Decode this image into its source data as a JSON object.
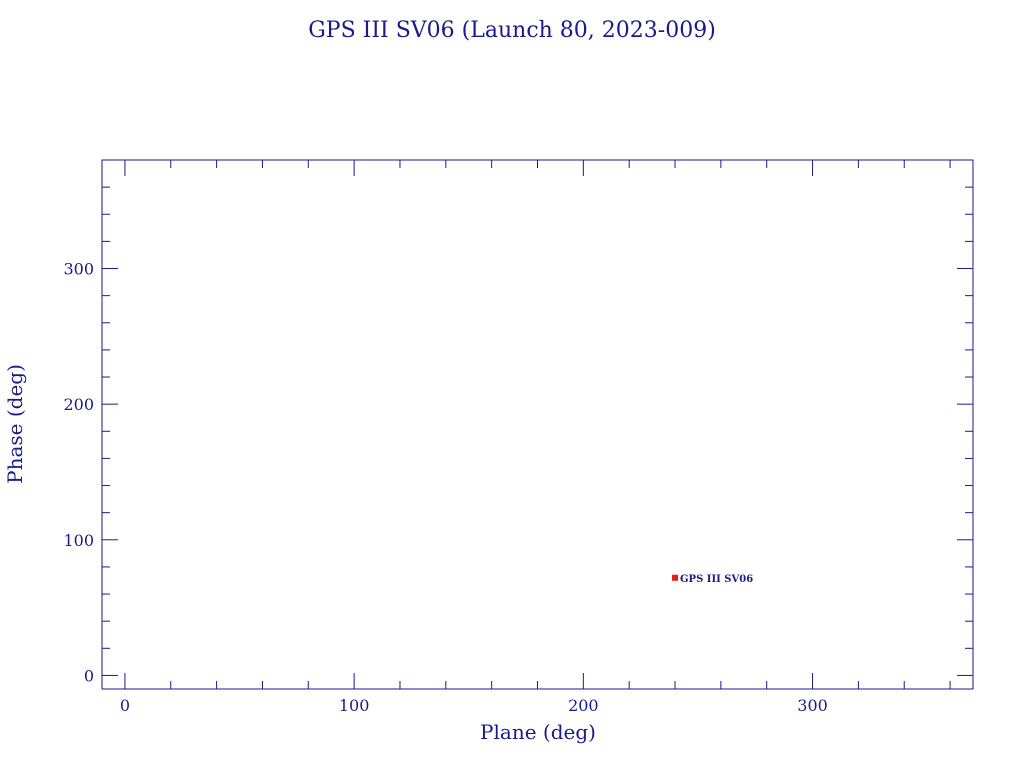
{
  "chart_data": {
    "type": "scatter",
    "title": "GPS III SV06 (Launch 80, 2023-009)",
    "xlabel": "Plane (deg)",
    "ylabel": "Phase (deg)",
    "xlim": [
      -10,
      370
    ],
    "ylim": [
      -10,
      380
    ],
    "xticks": [
      0,
      100,
      200,
      300
    ],
    "yticks": [
      0,
      100,
      200,
      300
    ],
    "grid": false,
    "points": [
      {
        "x": 240,
        "y": 72,
        "label": "GPS III SV06",
        "color": "#e0201b"
      }
    ]
  },
  "colors": {
    "axis": "#1a1a8c",
    "marker": "#e0201b"
  }
}
